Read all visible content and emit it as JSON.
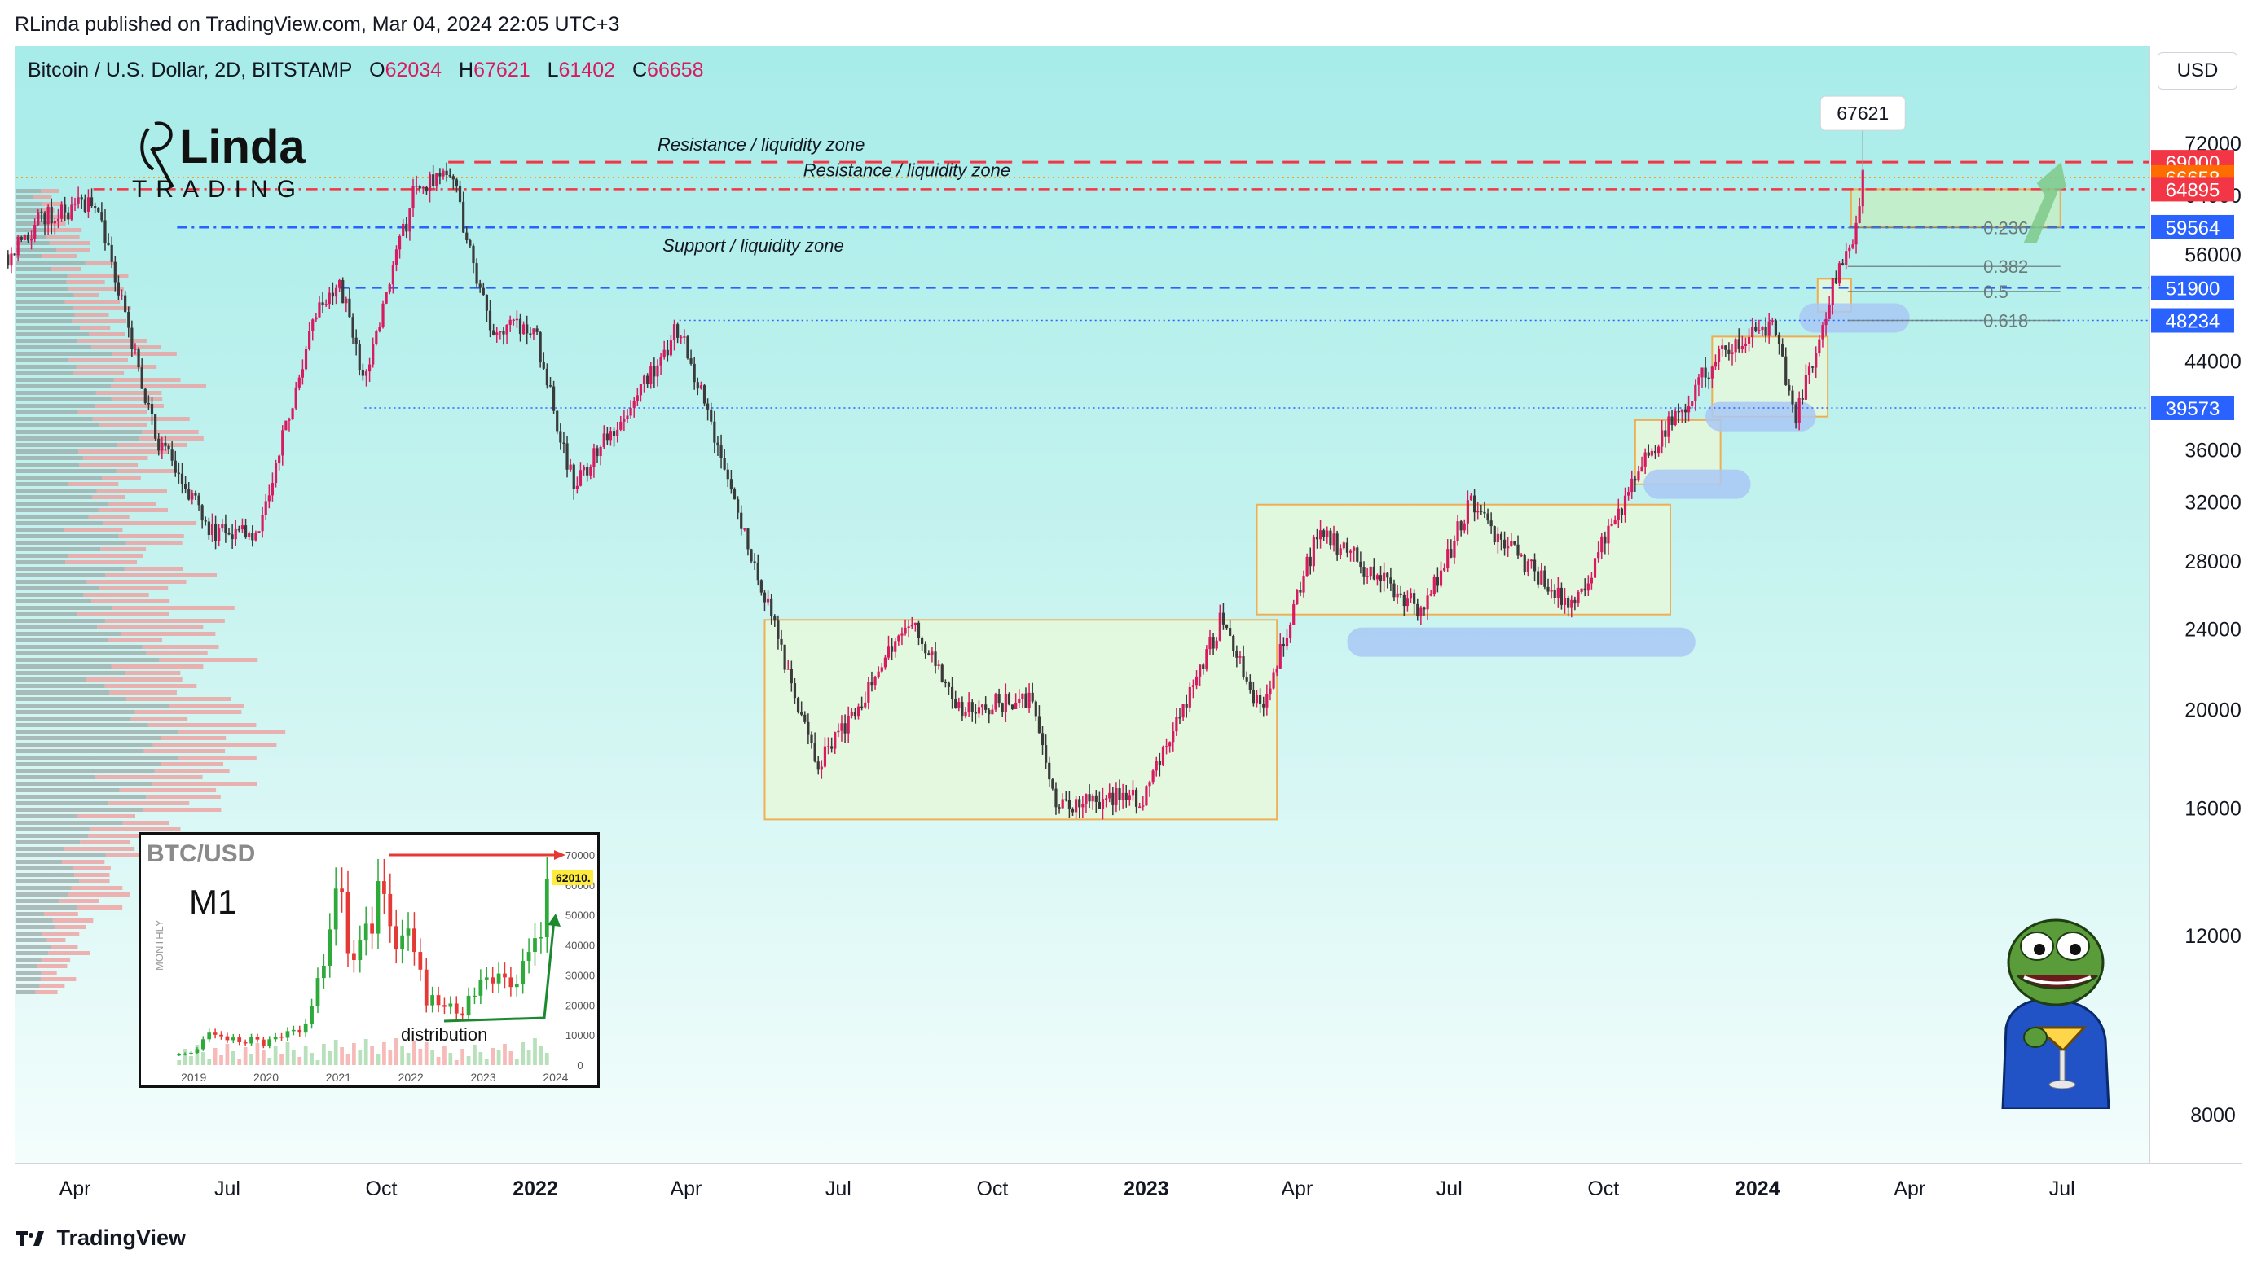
{
  "header": {
    "published_text": "RLinda published on TradingView.com, Mar 04, 2024 22:05 UTC+3"
  },
  "legend": {
    "symbol": "Bitcoin / U.S. Dollar, 2D, BITSTAMP",
    "o_label": "O",
    "o_value": "62034",
    "h_label": "H",
    "h_value": "67621",
    "l_label": "L",
    "l_value": "61402",
    "c_label": "C",
    "c_value": "66658"
  },
  "currency_button": "USD",
  "logo": {
    "line1": "RLinda",
    "line2": "TRADING"
  },
  "footer": {
    "brand": "TradingView"
  },
  "colors": {
    "up": "#26a69a",
    "down": "#ef5350",
    "candle_main": "#d81b60",
    "resistance": "#f23645",
    "support": "#2962ff",
    "zone_box": "#f6a33a",
    "blue_zone": "#a9c8f4",
    "arrow": "#7fc98a"
  },
  "chart_data": [
    {
      "type": "candlestick",
      "title": "",
      "y_axis": {
        "scale": "log",
        "ticks": [
          72000,
          64000,
          56000,
          44000,
          36000,
          32000,
          28000,
          24000,
          20000,
          16000,
          12000,
          8000
        ],
        "tick_labels": [
          "72000",
          "64000",
          "56000",
          "44000",
          "36000",
          "32000",
          "28000",
          "24000",
          "20000",
          "16000",
          "12000",
          "8000"
        ]
      },
      "x_axis": {
        "labels": [
          {
            "text": "Apr",
            "date": "2021-04-01",
            "bold": false
          },
          {
            "text": "Jul",
            "date": "2021-07-01",
            "bold": false
          },
          {
            "text": "Oct",
            "date": "2021-10-01",
            "bold": false
          },
          {
            "text": "2022",
            "date": "2022-01-01",
            "bold": true
          },
          {
            "text": "Apr",
            "date": "2022-04-01",
            "bold": false
          },
          {
            "text": "Jul",
            "date": "2022-07-01",
            "bold": false
          },
          {
            "text": "Oct",
            "date": "2022-10-01",
            "bold": false
          },
          {
            "text": "2023",
            "date": "2023-01-01",
            "bold": true
          },
          {
            "text": "Apr",
            "date": "2023-04-01",
            "bold": false
          },
          {
            "text": "Jul",
            "date": "2023-07-01",
            "bold": false
          },
          {
            "text": "Oct",
            "date": "2023-10-01",
            "bold": false
          },
          {
            "text": "2024",
            "date": "2024-01-01",
            "bold": true
          },
          {
            "text": "Apr",
            "date": "2024-04-01",
            "bold": false
          },
          {
            "text": "Jul",
            "date": "2024-07-01",
            "bold": false
          }
        ]
      },
      "price_series": [
        [
          "2021-02-20",
          56000
        ],
        [
          "2021-03-13",
          61000
        ],
        [
          "2021-04-14",
          63000
        ],
        [
          "2021-05-19",
          37000
        ],
        [
          "2021-06-22",
          30000
        ],
        [
          "2021-07-20",
          30000
        ],
        [
          "2021-08-23",
          49000
        ],
        [
          "2021-09-07",
          52000
        ],
        [
          "2021-09-21",
          42000
        ],
        [
          "2021-10-20",
          64000
        ],
        [
          "2021-11-10",
          68900
        ],
        [
          "2021-12-04",
          48000
        ],
        [
          "2022-01-01",
          47000
        ],
        [
          "2022-01-24",
          33000
        ],
        [
          "2022-03-28",
          47500
        ],
        [
          "2022-05-12",
          28000
        ],
        [
          "2022-06-18",
          17600
        ],
        [
          "2022-08-14",
          24500
        ],
        [
          "2022-09-13",
          20000
        ],
        [
          "2022-10-25",
          20500
        ],
        [
          "2022-11-09",
          16000
        ],
        [
          "2022-12-31",
          16500
        ],
        [
          "2023-02-15",
          24500
        ],
        [
          "2023-03-10",
          20000
        ],
        [
          "2023-04-14",
          30000
        ],
        [
          "2023-06-15",
          25000
        ],
        [
          "2023-07-13",
          31800
        ],
        [
          "2023-09-11",
          25000
        ],
        [
          "2023-10-23",
          34500
        ],
        [
          "2023-12-08",
          44500
        ],
        [
          "2024-01-11",
          48000
        ],
        [
          "2024-01-23",
          38500
        ],
        [
          "2024-02-15",
          52000
        ],
        [
          "2024-02-26",
          57000
        ],
        [
          "2024-03-04",
          66658
        ]
      ],
      "price_labels": [
        {
          "text": "69000",
          "value": 69000,
          "color": "#f23645"
        },
        {
          "text": "66658",
          "value": 66658,
          "color": "#ff6d00"
        },
        {
          "text": "64895",
          "value": 64895,
          "color": "#f23645"
        },
        {
          "text": "59564",
          "value": 59564,
          "color": "#2962ff"
        },
        {
          "text": "51900",
          "value": 51900,
          "color": "#2962ff"
        },
        {
          "text": "48234",
          "value": 48234,
          "color": "#2962ff"
        },
        {
          "text": "39573",
          "value": 39573,
          "color": "#2962ff"
        }
      ],
      "high_label": {
        "text": "67621",
        "value": 67621
      },
      "fib_levels": [
        {
          "label": "0.236",
          "value": 59500
        },
        {
          "label": "0.382",
          "value": 54500
        },
        {
          "label": "0.5",
          "value": 51500
        },
        {
          "label": "0.618",
          "value": 48234
        }
      ],
      "annotations": [
        {
          "text": "Resistance / liquidity zone",
          "level": 69000
        },
        {
          "text": "Resistance / liquidity zone",
          "level": 64895
        },
        {
          "text": "Support / liquidity zone",
          "level": 59564
        }
      ]
    },
    {
      "type": "candlestick",
      "title": "BTC/USD",
      "timeframe_text": "M1",
      "ylabel": "MONTHLY",
      "price_tag": "62010.",
      "note": "distribution",
      "y_ticks": [
        "70000",
        "60000",
        "50000",
        "40000",
        "30000",
        "20000",
        "10000",
        "0"
      ],
      "x_labels": [
        "2019",
        "2020",
        "2021",
        "2022",
        "2023",
        "2024"
      ],
      "values": [
        3600,
        3800,
        4100,
        5300,
        8600,
        10800,
        10100,
        9600,
        8300,
        9200,
        7600,
        7200,
        9300,
        8500,
        6400,
        8600,
        9500,
        9100,
        11300,
        11700,
        10800,
        13800,
        19700,
        29000,
        33100,
        45200,
        58800,
        57700,
        37300,
        35000,
        41500,
        47100,
        43800,
        61300,
        57000,
        46300,
        38500,
        43200,
        45500,
        37700,
        31800,
        19900,
        23300,
        20000,
        19400,
        20500,
        17200,
        16500,
        23100,
        23100,
        28500,
        29200,
        27200,
        30500,
        29200,
        26000,
        27000,
        34700,
        37700,
        42300,
        42600,
        62010
      ]
    }
  ]
}
